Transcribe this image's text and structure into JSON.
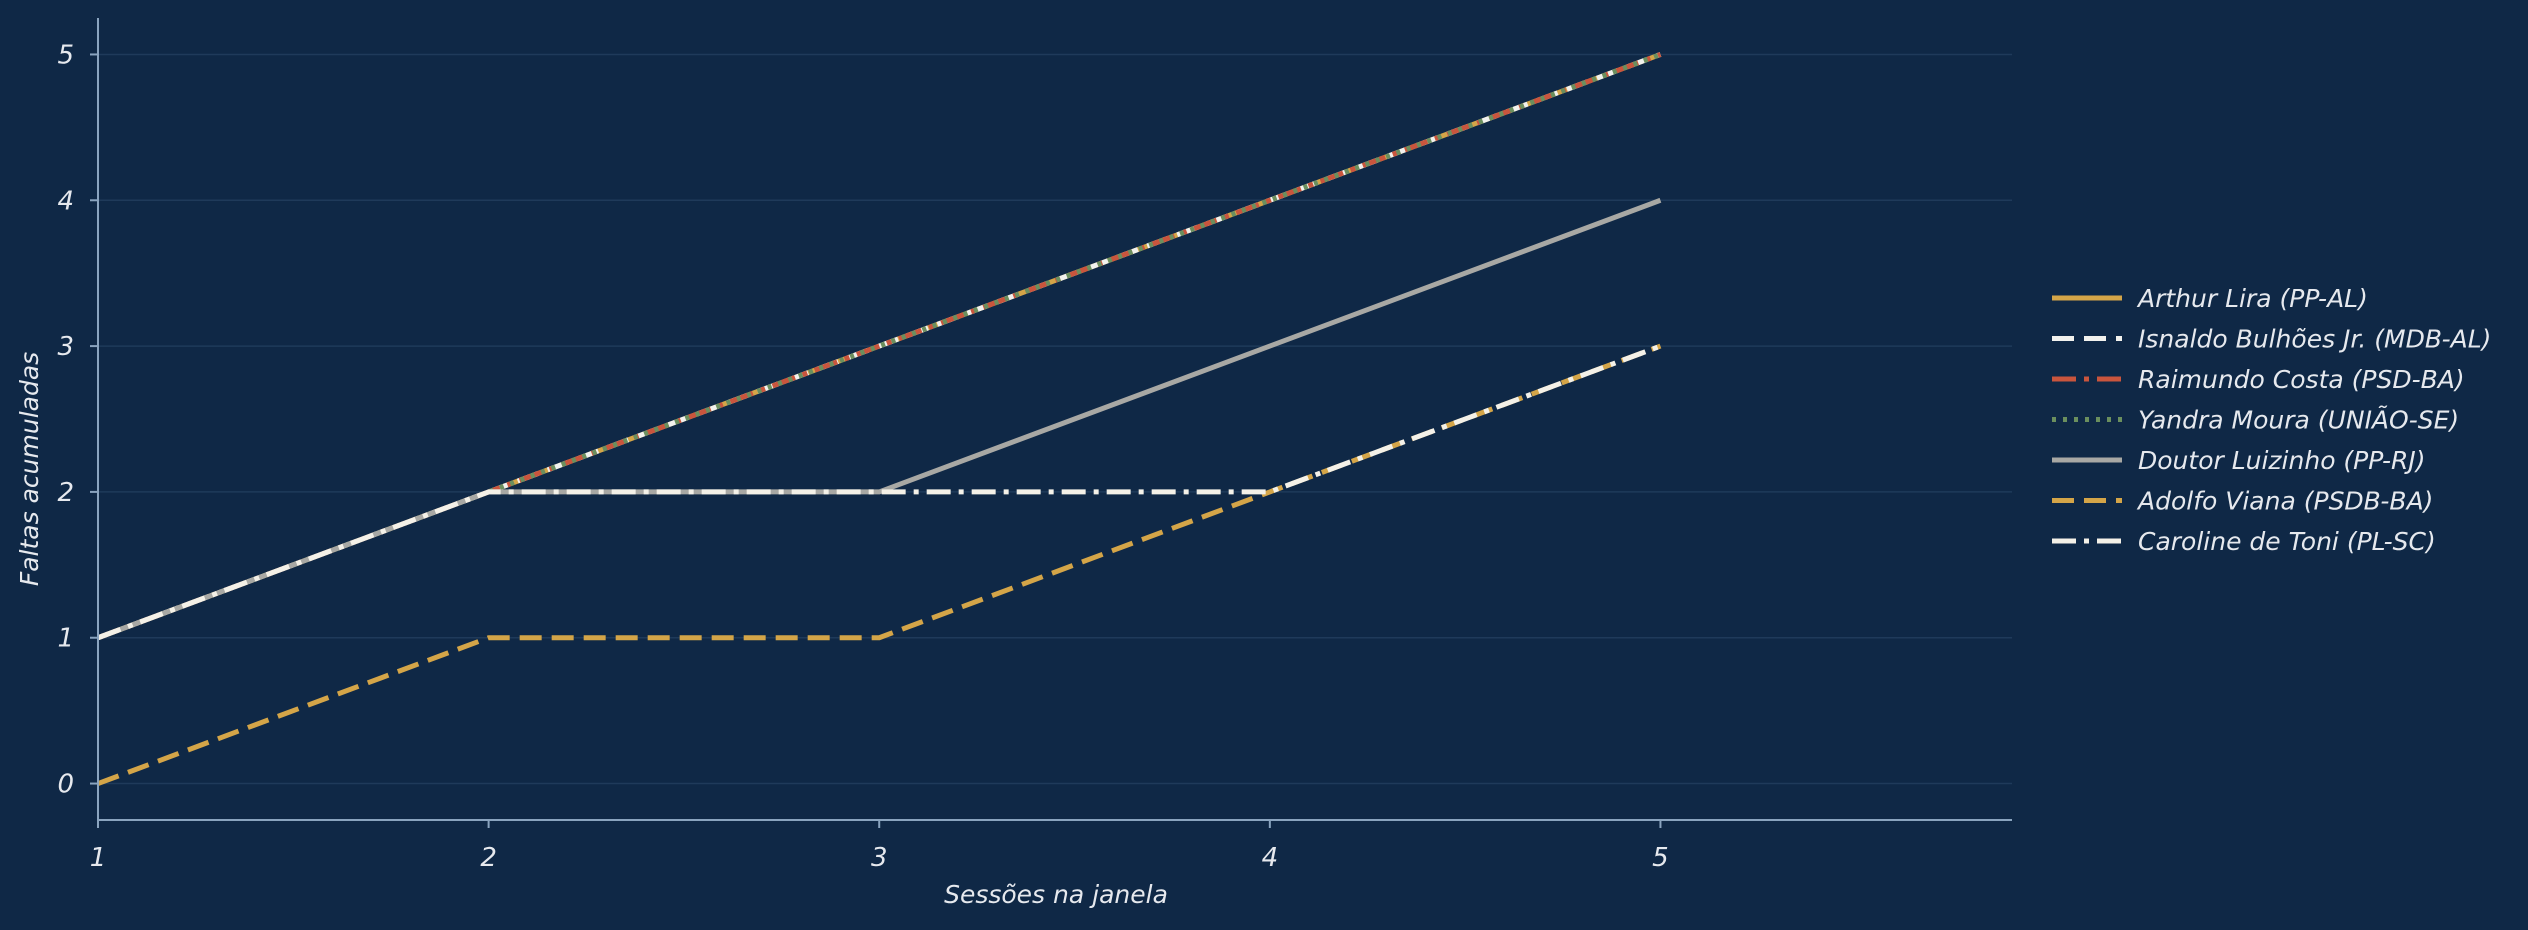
{
  "colors": {
    "background": "#0f2846",
    "axis": "#8aa4bf",
    "grid": "#1f3a5a",
    "text": "#e6e9ee"
  },
  "chart_data": {
    "type": "line",
    "xlabel": "Sessões na janela",
    "ylabel": "Faltas acumuladas",
    "x": [
      1,
      2,
      3,
      4,
      5
    ],
    "xlim": [
      1,
      5.9
    ],
    "ylim": [
      -0.25,
      5.25
    ],
    "xticks": [
      "1",
      "2",
      "3",
      "4",
      "5"
    ],
    "yticks": [
      "0",
      "1",
      "2",
      "3",
      "4",
      "5"
    ],
    "grid": "horizontal",
    "legend_position": "right",
    "series": [
      {
        "name": "Arthur Lira (PP-AL)",
        "values": [
          1,
          2,
          3,
          4,
          5
        ],
        "color": "#d4a548",
        "style": "solid"
      },
      {
        "name": "Isnaldo Bulhões Jr. (MDB-AL)",
        "values": [
          1,
          2,
          3,
          4,
          5
        ],
        "color": "#f2f2ee",
        "style": "dashed"
      },
      {
        "name": "Raimundo Costa (PSD-BA)",
        "values": [
          1,
          2,
          3,
          4,
          5
        ],
        "color": "#c9553d",
        "style": "dashdot"
      },
      {
        "name": "Yandra Moura (UNIÃO-SE)",
        "values": [
          1,
          2,
          3,
          4,
          5
        ],
        "color": "#6b8f5e",
        "style": "dotted"
      },
      {
        "name": "Doutor Luizinho (PP-RJ)",
        "values": [
          1,
          2,
          2,
          3,
          4
        ],
        "color": "#a8a8a4",
        "style": "solid"
      },
      {
        "name": "Adolfo Viana (PSDB-BA)",
        "values": [
          0,
          1,
          1,
          2,
          3
        ],
        "color": "#d4a548",
        "style": "dashed"
      },
      {
        "name": "Caroline de Toni (PL-SC)",
        "values": [
          1,
          2,
          2,
          2,
          3
        ],
        "color": "#f4f1e8",
        "style": "dashdot"
      }
    ]
  }
}
